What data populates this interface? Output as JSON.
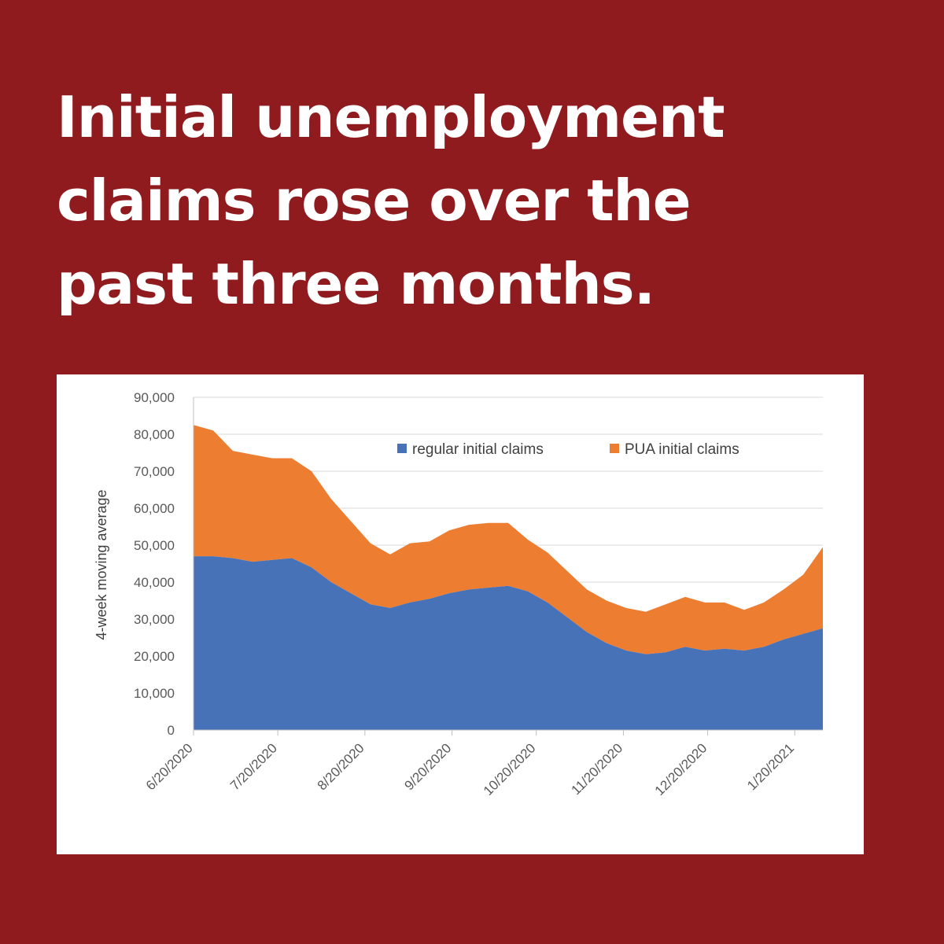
{
  "headline": {
    "line1": "Initial unemployment",
    "line2": "claims rose over the",
    "line3": "past three months."
  },
  "colors": {
    "background": "#8f1b1f",
    "regular": "#4872b8",
    "pua": "#ed7d31"
  },
  "chart_data": {
    "type": "area",
    "stacked": true,
    "ylabel": "4-week moving average",
    "xlabel": "",
    "ylim": [
      0,
      90000
    ],
    "yticks": [
      0,
      10000,
      20000,
      30000,
      40000,
      50000,
      60000,
      70000,
      80000,
      90000
    ],
    "ytick_labels": [
      "0",
      "10,000",
      "20,000",
      "30,000",
      "40,000",
      "50,000",
      "60,000",
      "70,000",
      "80,000",
      "90,000"
    ],
    "x_ticks": [
      "2020-06-20",
      "2020-07-20",
      "2020-08-20",
      "2020-09-20",
      "2020-10-20",
      "2020-11-20",
      "2020-12-20",
      "2021-01-20"
    ],
    "x_tick_labels": [
      "6/20/2020",
      "7/20/2020",
      "8/20/2020",
      "9/20/2020",
      "10/20/2020",
      "11/20/2020",
      "12/20/2020",
      "1/20/2021"
    ],
    "x_range": [
      "2020-06-20",
      "2021-01-30"
    ],
    "grid": "horizontal",
    "legend": "top-right",
    "x": [
      "2020-06-20",
      "2020-06-27",
      "2020-07-04",
      "2020-07-11",
      "2020-07-18",
      "2020-07-25",
      "2020-08-01",
      "2020-08-08",
      "2020-08-15",
      "2020-08-22",
      "2020-08-29",
      "2020-09-05",
      "2020-09-12",
      "2020-09-19",
      "2020-09-26",
      "2020-10-03",
      "2020-10-10",
      "2020-10-17",
      "2020-10-24",
      "2020-10-31",
      "2020-11-07",
      "2020-11-14",
      "2020-11-21",
      "2020-11-28",
      "2020-12-05",
      "2020-12-12",
      "2020-12-19",
      "2020-12-26",
      "2021-01-02",
      "2021-01-09",
      "2021-01-16",
      "2021-01-23",
      "2021-01-30"
    ],
    "series": [
      {
        "name": "regular initial claims",
        "values": [
          47000,
          47000,
          46500,
          45500,
          46000,
          46500,
          44000,
          40000,
          37000,
          34000,
          33000,
          34500,
          35500,
          37000,
          38000,
          38500,
          39000,
          37500,
          34500,
          30500,
          26500,
          23500,
          21500,
          20500,
          21000,
          22500,
          21500,
          22000,
          21500,
          22500,
          24500,
          26000,
          27500
        ]
      },
      {
        "name": "PUA initial claims",
        "values": [
          35500,
          34000,
          29000,
          29000,
          27500,
          27000,
          26000,
          22500,
          19500,
          16500,
          14500,
          16000,
          15500,
          17000,
          17500,
          17500,
          17000,
          14000,
          13500,
          12500,
          11500,
          11500,
          11500,
          11500,
          13000,
          13500,
          13000,
          12500,
          11000,
          12000,
          13500,
          16000,
          22000
        ]
      }
    ]
  }
}
